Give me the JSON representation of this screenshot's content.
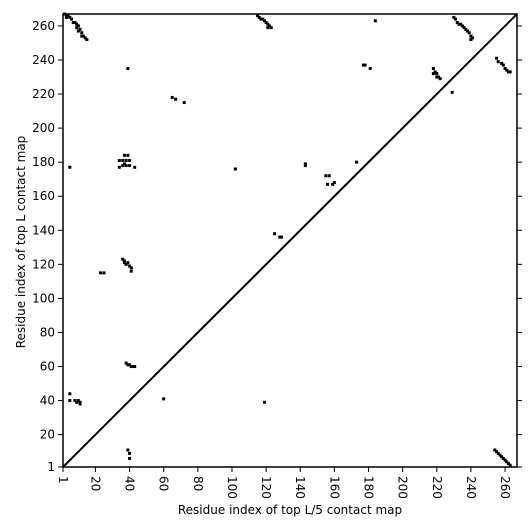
{
  "chart_data": {
    "type": "scatter",
    "xlabel": "Residue index of top L/5 contact map",
    "ylabel": "Residue index of top L contact map",
    "color": "#000000",
    "xlim": [
      1,
      267
    ],
    "ylim": [
      1,
      267
    ],
    "xticks": [
      1,
      20,
      40,
      60,
      80,
      100,
      120,
      140,
      160,
      180,
      200,
      220,
      240,
      260
    ],
    "yticks": [
      1,
      20,
      40,
      60,
      80,
      100,
      120,
      140,
      160,
      180,
      200,
      220,
      240,
      260
    ],
    "x": [
      2,
      3,
      4,
      5,
      3,
      6,
      7,
      8,
      9,
      10,
      9,
      11,
      10,
      12,
      13,
      12,
      14,
      15,
      5,
      39,
      65,
      67,
      72,
      115,
      116,
      117,
      118,
      119,
      120,
      121,
      122,
      121,
      123,
      184,
      230,
      231,
      232,
      233,
      234,
      235,
      236,
      237,
      238,
      239,
      240,
      241,
      240,
      255,
      256,
      258,
      259,
      260,
      261,
      262,
      263,
      218,
      219,
      218,
      220,
      221,
      222,
      220,
      229,
      177,
      178,
      181,
      102,
      143,
      143,
      173,
      155,
      157,
      156,
      159,
      160,
      125,
      128,
      129,
      36,
      36,
      34,
      34,
      38,
      38,
      39,
      40,
      40,
      37,
      43,
      37,
      36,
      37,
      38,
      39,
      40,
      41,
      41,
      37,
      23,
      25,
      38,
      39,
      40,
      41,
      42,
      43,
      5,
      5,
      8,
      9,
      10,
      11,
      11,
      60,
      119,
      39,
      40,
      40,
      254,
      255,
      256,
      257,
      258,
      259,
      260,
      261,
      262,
      263
    ],
    "y": [
      267,
      266,
      266,
      265,
      265,
      264,
      262,
      262,
      261,
      260,
      259,
      258,
      257,
      256,
      254,
      254,
      253,
      252,
      177,
      235,
      218,
      217,
      215,
      266,
      265,
      264,
      264,
      263,
      262,
      261,
      260,
      259,
      259,
      263,
      265,
      264,
      262,
      261,
      261,
      260,
      259,
      258,
      257,
      256,
      254,
      253,
      252,
      241,
      239,
      238,
      237,
      235,
      234,
      233,
      233,
      235,
      233,
      232,
      232,
      230,
      229,
      230,
      221,
      237,
      237,
      235,
      176,
      178,
      179,
      180,
      172,
      172,
      167,
      167,
      168,
      138,
      136,
      136,
      181,
      178,
      181,
      177,
      181,
      178,
      184,
      181,
      178,
      184,
      177,
      179,
      123,
      121,
      120,
      121,
      119,
      118,
      116,
      122,
      115,
      115,
      62,
      61,
      61,
      60,
      60,
      60,
      44,
      40,
      40,
      39,
      40,
      39,
      38,
      41,
      39,
      11,
      9,
      6,
      11,
      10,
      9,
      8,
      7,
      6,
      5,
      4,
      3,
      2
    ]
  }
}
